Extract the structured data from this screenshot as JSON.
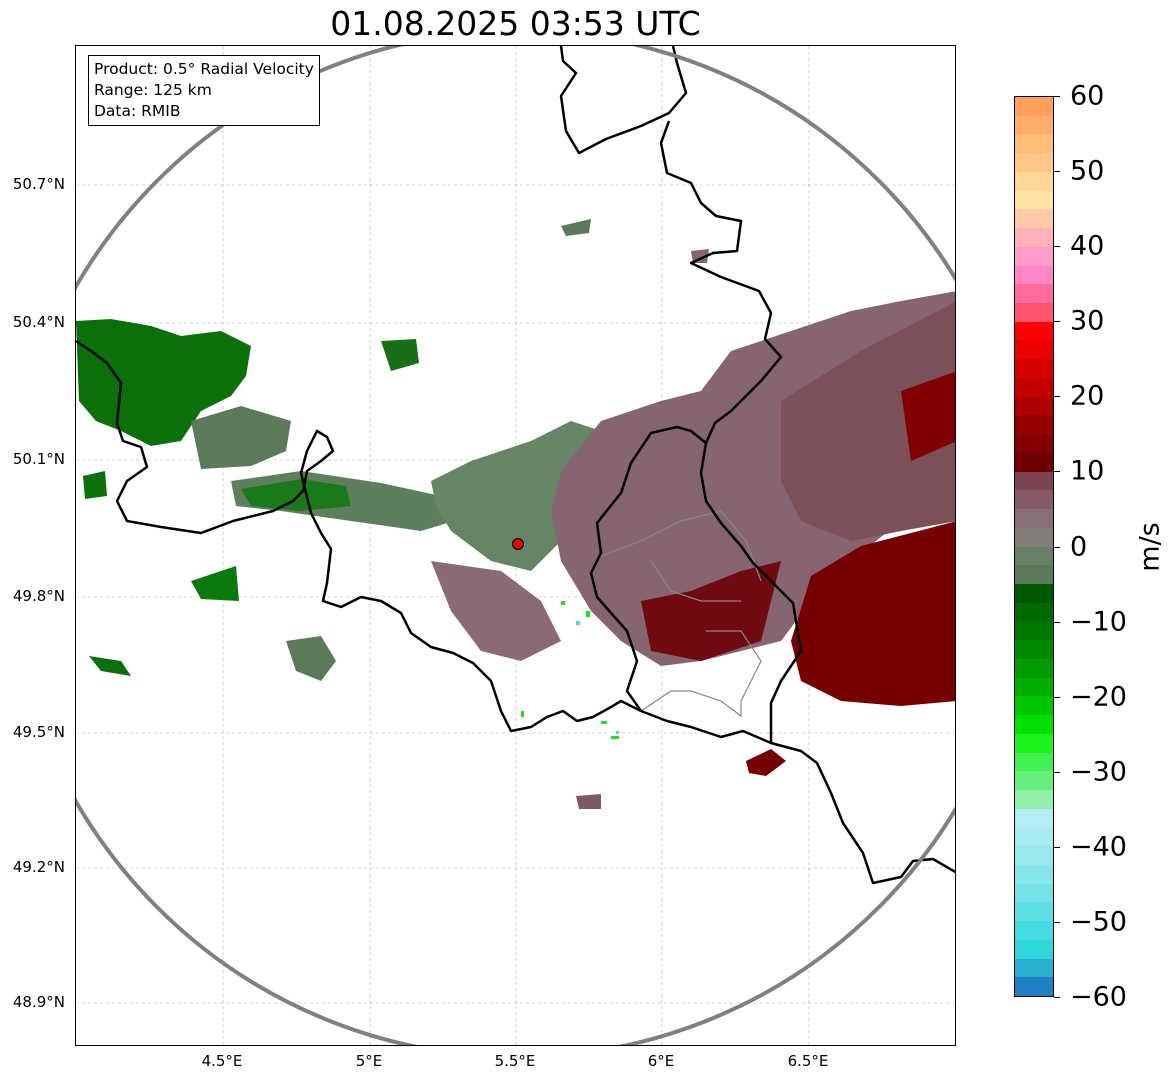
{
  "title": "01.08.2025 03:53 UTC",
  "info_box": {
    "product": "Product: 0.5° Radial Velocity",
    "range": "Range: 125 km",
    "data": "Data: RMIB"
  },
  "axes": {
    "x_ticks": [
      "4.5°E",
      "5°E",
      "5.5°E",
      "6°E",
      "6.5°E"
    ],
    "y_ticks": [
      "50.7°N",
      "50.4°N",
      "50.1°N",
      "49.8°N",
      "49.5°N",
      "49.2°N",
      "48.9°N"
    ]
  },
  "colorbar": {
    "label": "m/s",
    "ticks": [
      "60",
      "50",
      "40",
      "30",
      "20",
      "10",
      "0",
      "−10",
      "−20",
      "−30",
      "−40",
      "−50",
      "−60"
    ],
    "colors": [
      "#ff9f5a",
      "#ffad68",
      "#ffbd78",
      "#ffc888",
      "#ffd898",
      "#ffe2a2",
      "#ffcaa8",
      "#ffb0b8",
      "#ff9ccc",
      "#ff86c6",
      "#ff6c9c",
      "#ff5470",
      "#ff0000",
      "#ea0000",
      "#d60000",
      "#c20000",
      "#ae0000",
      "#980000",
      "#840000",
      "#700000",
      "#7c4450",
      "#855a66",
      "#877078",
      "#847e7a",
      "#688068",
      "#5a7a5a",
      "#005a00",
      "#006a00",
      "#007800",
      "#008a00",
      "#009c00",
      "#00b000",
      "#00c800",
      "#00e000",
      "#18f418",
      "#40f050",
      "#64f07a",
      "#92f0aa",
      "#b4eef2",
      "#a8ecf0",
      "#98e8ec",
      "#88e6ea",
      "#72e2e8",
      "#5ce0e4",
      "#44dce0",
      "#30d8dc",
      "#28b0d0",
      "#2080c4"
    ]
  },
  "map": {
    "radar_site": "radar-site",
    "range_km": 125
  }
}
